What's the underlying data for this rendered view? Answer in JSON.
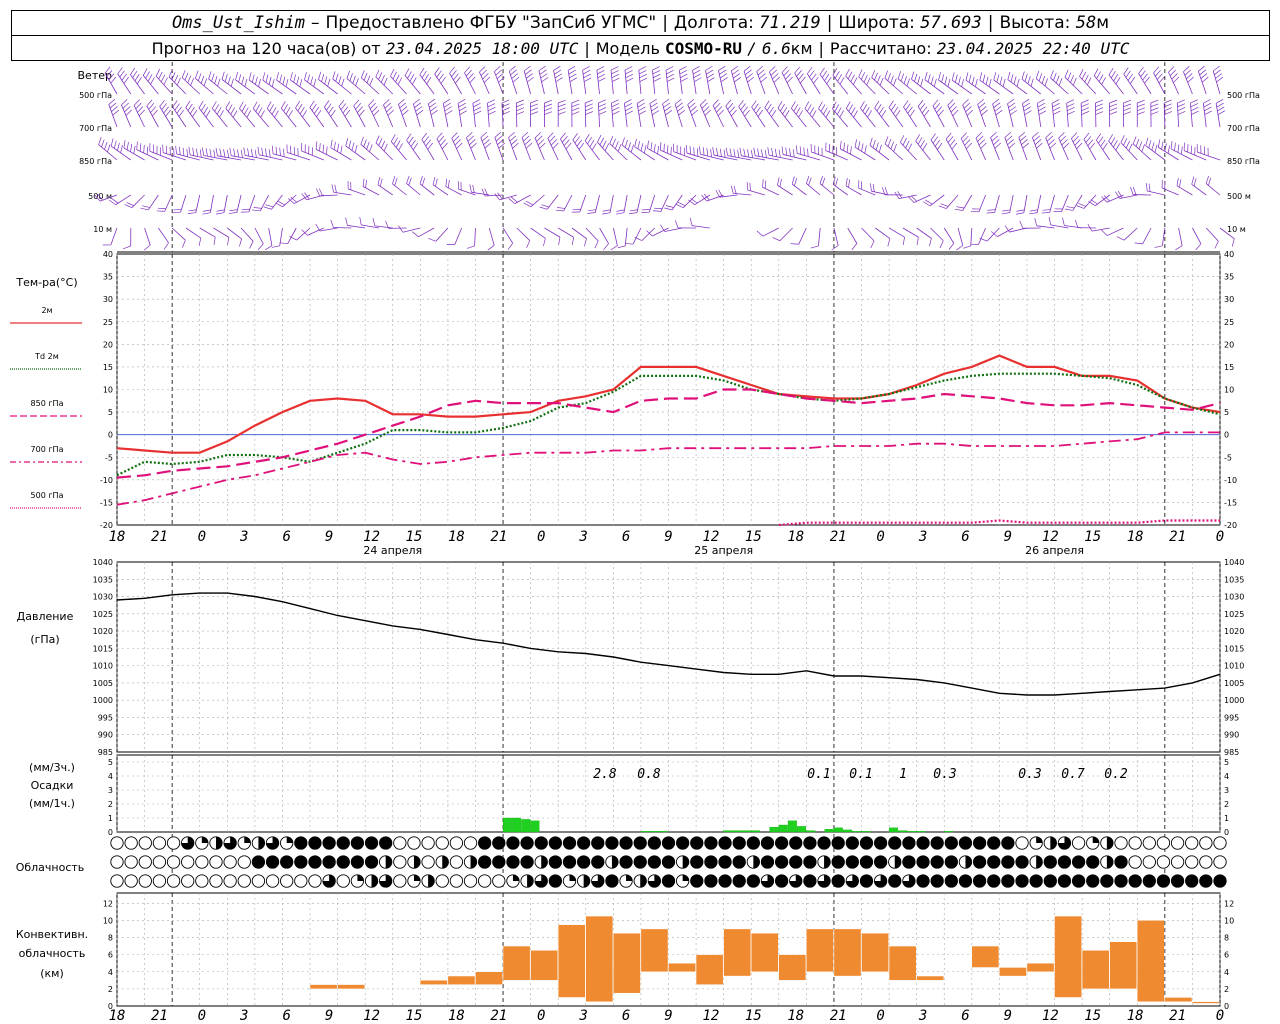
{
  "header": {
    "station": "Oms_Ust_Ishim",
    "provider": "Предоставлено ФГБУ \"ЗапСиб УГМС\"",
    "lon_label": "Долгота:",
    "lon_value": "71.219",
    "lat_label": "Широта:",
    "lat_value": "57.693",
    "alt_label": "Высота:",
    "alt_value": "58",
    "alt_unit": "м",
    "forecast_prefix": "Прогноз на 120 часа(ов) от",
    "forecast_date": "23.04.2025 18:00 UTC",
    "model_label": "Модель",
    "model_name": "COSMO-RU",
    "model_res": "6.6",
    "model_res_unit": "км",
    "calc_label": "Рассчитано:",
    "calc_date": "23.04.2025 22:40 UTC"
  },
  "wind_panel": {
    "title": "Ветер",
    "levels": [
      "500 гПа",
      "700 гПа",
      "850 гПа",
      "500 м",
      "10 м"
    ],
    "barb_color": "#8030c0"
  },
  "temp_panel": {
    "title": "Тем-ра(°C)",
    "legend": [
      {
        "label": "2м",
        "color": "#e83030",
        "dash": "solid"
      },
      {
        "label": "Td 2м",
        "color": "#107010",
        "dash": "dotted"
      },
      {
        "label": "850 гПа",
        "color": "#e0107a",
        "dash": "long-dash"
      },
      {
        "label": "700 гПа",
        "color": "#e0107a",
        "dash": "dash-dot"
      },
      {
        "label": "500 гПа",
        "color": "#e0107a",
        "dash": "dotted"
      }
    ],
    "yticks": [
      "40",
      "35",
      "30",
      "25",
      "20",
      "15",
      "10",
      "5",
      "0",
      "-5",
      "-10",
      "-15",
      "-20"
    ]
  },
  "x_axis": {
    "hour_labels": [
      "18",
      "21",
      "0",
      "3",
      "6",
      "9",
      "12",
      "15",
      "18",
      "21",
      "0",
      "3",
      "6",
      "9",
      "12",
      "15",
      "18",
      "21",
      "0",
      "3",
      "6",
      "9",
      "12",
      "15",
      "18",
      "21",
      "0"
    ],
    "day_labels": [
      "24 апреля",
      "25 апреля",
      "26 апреля"
    ]
  },
  "pressure_panel": {
    "title": "Давление",
    "unit": "(гПа)",
    "yticks": [
      "1040",
      "1035",
      "1030",
      "1025",
      "1020",
      "1015",
      "1010",
      "1005",
      "1000",
      "995",
      "990",
      "985"
    ]
  },
  "precip_panel": {
    "unit_top": "(мм/3ч.)",
    "title": "Осадки",
    "unit_bottom": "(мм/1ч.)",
    "yticks": [
      "5",
      "4",
      "3",
      "2",
      "1",
      "0"
    ],
    "totals": [
      "2.8",
      "0.8",
      "0.1",
      "0.1",
      "1",
      "0.3",
      "0.3",
      "0.7",
      "0.2"
    ],
    "bar_color": "#20d020"
  },
  "cloud_panel": {
    "title": "Облачность"
  },
  "conv_panel": {
    "title_line1": "Конвективн.",
    "title_line2": "облачность",
    "unit": "(км)",
    "yticks": [
      "12",
      "10",
      "8",
      "6",
      "4",
      "2",
      "0"
    ],
    "bar_color": "#f08a30"
  },
  "chart_data": [
    {
      "type": "line",
      "title": "Тем-ра(°C)",
      "x_hours": [
        0,
        3,
        6,
        9,
        12,
        15,
        18,
        21,
        24,
        27,
        30,
        33,
        36,
        39,
        42,
        45,
        48,
        51,
        54,
        57,
        60,
        63,
        66,
        69,
        72,
        75,
        78,
        81,
        84,
        87,
        90,
        93,
        96,
        99,
        102,
        105,
        108,
        111,
        114,
        117,
        120
      ],
      "ylim": [
        -20,
        40
      ],
      "series": [
        {
          "name": "2м",
          "values": [
            -3,
            -3.5,
            -4,
            -4,
            -1.5,
            2,
            5,
            7.5,
            8,
            7.5,
            4.5,
            4.5,
            4,
            4,
            4.5,
            5,
            7.5,
            8.5,
            10,
            15,
            15,
            15,
            13,
            11,
            9,
            8.5,
            8,
            8,
            9,
            11,
            13.5,
            15,
            17.5,
            15,
            15,
            13,
            13,
            12,
            8,
            6,
            5
          ]
        },
        {
          "name": "Td 2м",
          "values": [
            -9,
            -6,
            -6.5,
            -6,
            -4.5,
            -4.5,
            -5,
            -6,
            -4,
            -2,
            1,
            1,
            0.5,
            0.5,
            1.5,
            3,
            6,
            7,
            9.5,
            13,
            13,
            13,
            12,
            10,
            9,
            8,
            7.5,
            8,
            9,
            10.5,
            12,
            13,
            13.5,
            13.5,
            13.5,
            13,
            12.5,
            11,
            8,
            6,
            4.5
          ]
        },
        {
          "name": "850 гПа",
          "values": [
            -9.5,
            -9,
            -8,
            -7.5,
            -7,
            -6,
            -5,
            -3.5,
            -2,
            0,
            2,
            4,
            6.5,
            7.5,
            7,
            7,
            7,
            6,
            5,
            7.5,
            8,
            8,
            10,
            10,
            9,
            8,
            7.5,
            7,
            7.5,
            8,
            9,
            8.5,
            8,
            7,
            6.5,
            6.5,
            7,
            6.5,
            6,
            5.5,
            7
          ]
        },
        {
          "name": "700 гПа",
          "values": [
            -15.5,
            -14.5,
            -13,
            -11.5,
            -10,
            -9,
            -7.5,
            -6,
            -4.5,
            -4,
            -5.5,
            -6.5,
            -6,
            -5,
            -4.5,
            -4,
            -4,
            -4,
            -3.5,
            -3.5,
            -3,
            -3,
            -3,
            -3,
            -3,
            -3,
            -2.5,
            -2.5,
            -2.5,
            -2,
            -2,
            -2.5,
            -2.5,
            -2.5,
            -2.5,
            -2,
            -1.5,
            -1,
            0.5,
            0.5,
            0.5
          ]
        },
        {
          "name": "500 гПа",
          "x_hours": [
            72,
            75,
            78,
            81,
            84,
            87,
            90,
            93,
            96,
            99,
            102,
            105,
            108,
            111,
            114,
            117,
            120
          ],
          "values": [
            -20,
            -19.5,
            -19.5,
            -19.5,
            -19.5,
            -19.5,
            -19.5,
            -19.5,
            -19,
            -19.5,
            -19.5,
            -19.5,
            -19.5,
            -19.5,
            -19,
            -19,
            -19
          ]
        }
      ]
    },
    {
      "type": "line",
      "title": "Давление",
      "ylabel": "(гПа)",
      "x_hours": [
        0,
        3,
        6,
        9,
        12,
        15,
        18,
        21,
        24,
        27,
        30,
        33,
        36,
        39,
        42,
        45,
        48,
        51,
        54,
        57,
        60,
        63,
        66,
        69,
        72,
        75,
        78,
        81,
        84,
        87,
        90,
        93,
        96,
        99,
        102,
        105,
        108,
        111,
        114,
        117,
        120
      ],
      "ylim": [
        985,
        1040
      ],
      "series": [
        {
          "name": "",
          "values": [
            1029,
            1029.5,
            1030.5,
            1031,
            1031,
            1030,
            1028.5,
            1026.5,
            1024.5,
            1023,
            1021.5,
            1020.5,
            1019,
            1017.5,
            1016.5,
            1015,
            1014,
            1013.5,
            1012.5,
            1011,
            1010,
            1009,
            1008,
            1007.5,
            1007.5,
            1008.5,
            1007,
            1007,
            1006.5,
            1006,
            1005,
            1003.5,
            1002,
            1001.5,
            1001.5,
            1002,
            1002.5,
            1003,
            1003.5,
            1005,
            1007.5
          ]
        }
      ]
    },
    {
      "type": "bar",
      "title": "Осадки",
      "ylabel": "(мм/1ч.)",
      "x_hours": [
        42,
        43,
        44,
        45,
        57,
        58,
        59,
        66,
        67,
        68,
        69,
        71,
        72,
        73,
        74,
        75,
        77,
        78,
        79,
        80,
        81,
        84,
        85,
        86,
        87,
        90
      ],
      "values": [
        1.0,
        1.0,
        0.9,
        0.8,
        0.05,
        0.05,
        0.05,
        0.1,
        0.1,
        0.1,
        0.1,
        0.35,
        0.5,
        0.8,
        0.4,
        0.1,
        0.2,
        0.3,
        0.15,
        0.05,
        0.05,
        0.3,
        0.1,
        0.05,
        0.05,
        0.05
      ],
      "ylim": [
        0,
        5
      ]
    },
    {
      "type": "bar",
      "title": "Конвективн. облачность",
      "ylabel": "(км)",
      "ylim": [
        0,
        12
      ],
      "bars": [
        {
          "h": 24,
          "top": 2.5,
          "base": 2
        },
        {
          "h": 27,
          "top": 2.5,
          "base": 2
        },
        {
          "h": 36,
          "top": 3,
          "base": 2.5
        },
        {
          "h": 39,
          "top": 3.5,
          "base": 2.5
        },
        {
          "h": 42,
          "top": 4,
          "base": 2.5
        },
        {
          "h": 45,
          "top": 7,
          "base": 3
        },
        {
          "h": 48,
          "top": 6.5,
          "base": 3
        },
        {
          "h": 51,
          "top": 9.5,
          "base": 1
        },
        {
          "h": 54,
          "top": 10.5,
          "base": 0.5
        },
        {
          "h": 57,
          "top": 8.5,
          "base": 1.5
        },
        {
          "h": 60,
          "top": 9,
          "base": 4
        },
        {
          "h": 63,
          "top": 5,
          "base": 4
        },
        {
          "h": 66,
          "top": 6,
          "base": 2.5
        },
        {
          "h": 69,
          "top": 9,
          "base": 3.5
        },
        {
          "h": 72,
          "top": 8.5,
          "base": 4
        },
        {
          "h": 75,
          "top": 6,
          "base": 3
        },
        {
          "h": 78,
          "top": 9,
          "base": 4
        },
        {
          "h": 81,
          "top": 9,
          "base": 3.5
        },
        {
          "h": 84,
          "top": 8.5,
          "base": 4
        },
        {
          "h": 87,
          "top": 7,
          "base": 3
        },
        {
          "h": 90,
          "top": 3.5,
          "base": 3
        },
        {
          "h": 96,
          "top": 7,
          "base": 4.5
        },
        {
          "h": 99,
          "top": 4.5,
          "base": 3.5
        },
        {
          "h": 102,
          "top": 5,
          "base": 4
        },
        {
          "h": 105,
          "top": 10.5,
          "base": 1
        },
        {
          "h": 108,
          "top": 6.5,
          "base": 2
        },
        {
          "h": 111,
          "top": 7.5,
          "base": 2
        },
        {
          "h": 114,
          "top": 10,
          "base": 0.5
        },
        {
          "h": 117,
          "top": 1,
          "base": 0.5
        },
        {
          "h": 120,
          "top": 0.5,
          "base": 0.3
        }
      ]
    }
  ]
}
